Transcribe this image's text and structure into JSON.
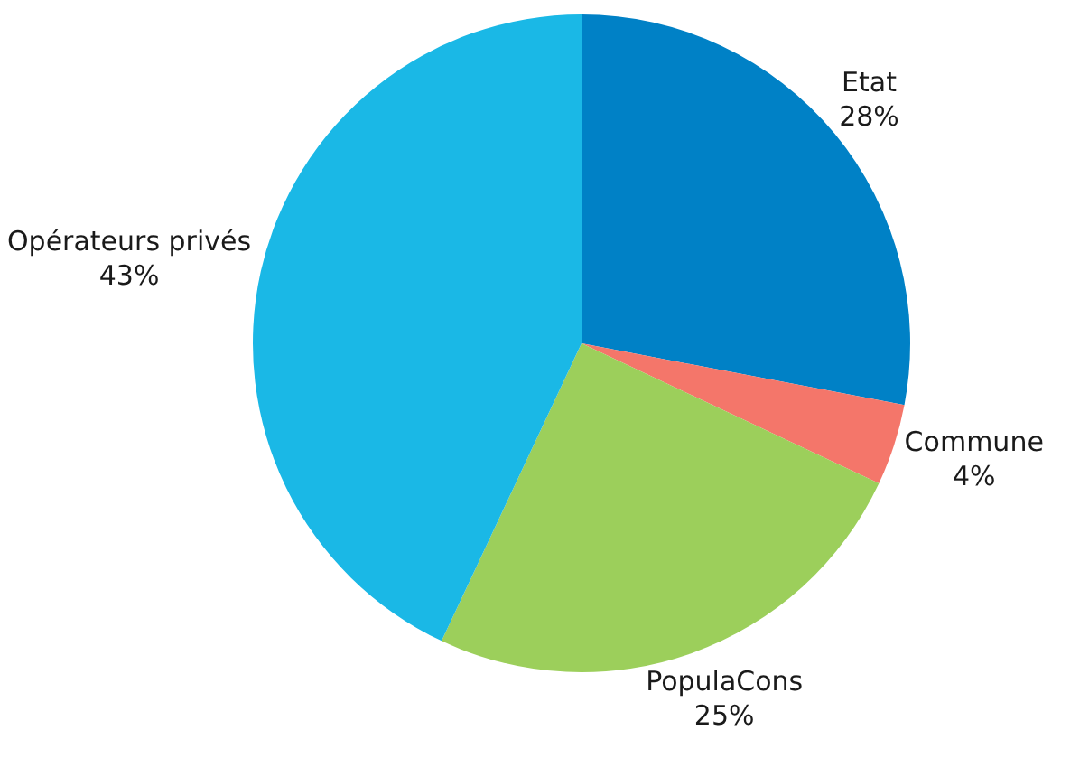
{
  "chart_data": {
    "type": "pie",
    "categories": [
      "Etat",
      "Commune",
      "PopulaCons",
      "Opérateurs privés"
    ],
    "values": [
      28,
      4,
      25,
      43
    ],
    "colors": [
      "#0081c6",
      "#f4766a",
      "#9ccf5b",
      "#1ab8e6"
    ],
    "value_labels": [
      "28%",
      "4%",
      "25%",
      "43%"
    ],
    "legend": false
  }
}
